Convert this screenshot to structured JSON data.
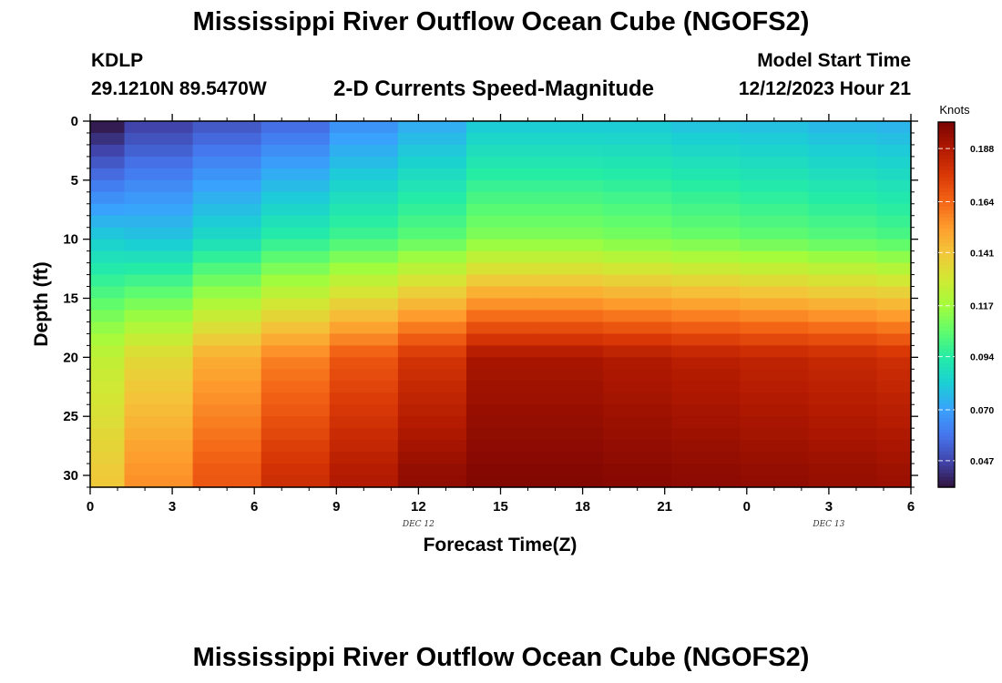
{
  "header": {
    "title": "Mississippi River Outflow Ocean Cube (NGOFS2)",
    "station": "KDLP",
    "coordinates": "29.1210N  89.5470W",
    "subtitle": "2-D Currents Speed-Magnitude",
    "model_start_label": "Model Start Time",
    "model_start_value": "12/12/2023 Hour 21"
  },
  "footer": {
    "title": "Mississippi River Outflow Ocean Cube (NGOFS2)"
  },
  "chart_data": {
    "type": "heatmap",
    "xlabel": "Forecast Time(Z)",
    "ylabel": "Depth (ft)",
    "x_tick_labels": [
      "0",
      "3",
      "6",
      "9",
      "12",
      "15",
      "18",
      "21",
      "0",
      "3",
      "6"
    ],
    "x_date_labels": [
      {
        "label": "DEC 12",
        "hours_from_start": 12
      },
      {
        "label": "DEC 13",
        "hours_from_start": 27
      }
    ],
    "xlim_hours": [
      0,
      30
    ],
    "y_tick_labels": [
      "0",
      "5",
      "10",
      "15",
      "20",
      "25",
      "30"
    ],
    "ylim": [
      0,
      31
    ],
    "y_inverted": true,
    "time_hours": [
      0,
      2.5,
      5,
      7.5,
      10,
      12.5,
      15,
      17.5,
      20,
      22.5,
      25,
      27.5,
      30
    ],
    "colorbar": {
      "label": "Knots",
      "min": 0.035,
      "max": 0.2,
      "ticks": [
        0.047,
        0.07,
        0.094,
        0.117,
        0.141,
        0.164,
        0.188
      ],
      "colors": [
        "#30123b",
        "#4145ab",
        "#4675ed",
        "#39a2fc",
        "#1bcfd4",
        "#24eca6",
        "#61fc6c",
        "#a4fc3b",
        "#d1e834",
        "#f3c63a",
        "#fe9b2d",
        "#f36315",
        "#d93806",
        "#b11901",
        "#7a0402"
      ]
    },
    "profiles": [
      {
        "time_hours": 0,
        "depth_ft": [
          0,
          10,
          20,
          30
        ],
        "speed_knots": [
          0.035,
          0.082,
          0.125,
          0.14
        ]
      },
      {
        "time_hours": 2.5,
        "depth_ft": [
          0,
          10,
          20,
          30
        ],
        "speed_knots": [
          0.045,
          0.08,
          0.135,
          0.155
        ]
      },
      {
        "time_hours": 5,
        "depth_ft": [
          0,
          10,
          20,
          30
        ],
        "speed_knots": [
          0.05,
          0.087,
          0.148,
          0.168
        ]
      },
      {
        "time_hours": 7.5,
        "depth_ft": [
          0,
          10,
          20,
          30
        ],
        "speed_knots": [
          0.055,
          0.095,
          0.158,
          0.18
        ]
      },
      {
        "time_hours": 10,
        "depth_ft": [
          0,
          10,
          20,
          30
        ],
        "speed_knots": [
          0.065,
          0.1,
          0.168,
          0.188
        ]
      },
      {
        "time_hours": 12.5,
        "depth_ft": [
          0,
          10,
          20,
          30
        ],
        "speed_knots": [
          0.072,
          0.105,
          0.178,
          0.195
        ]
      },
      {
        "time_hours": 15,
        "depth_ft": [
          0,
          10,
          20,
          30
        ],
        "speed_knots": [
          0.08,
          0.112,
          0.19,
          0.198
        ]
      },
      {
        "time_hours": 17.5,
        "depth_ft": [
          0,
          10,
          20,
          30
        ],
        "speed_knots": [
          0.08,
          0.112,
          0.19,
          0.198
        ]
      },
      {
        "time_hours": 20,
        "depth_ft": [
          0,
          10,
          20,
          30
        ],
        "speed_knots": [
          0.08,
          0.11,
          0.188,
          0.197
        ]
      },
      {
        "time_hours": 22.5,
        "depth_ft": [
          0,
          10,
          20,
          30
        ],
        "speed_knots": [
          0.078,
          0.108,
          0.186,
          0.196
        ]
      },
      {
        "time_hours": 25,
        "depth_ft": [
          0,
          10,
          20,
          30
        ],
        "speed_knots": [
          0.077,
          0.106,
          0.184,
          0.195
        ]
      },
      {
        "time_hours": 27.5,
        "depth_ft": [
          0,
          10,
          20,
          30
        ],
        "speed_knots": [
          0.075,
          0.104,
          0.182,
          0.194
        ]
      },
      {
        "time_hours": 30,
        "depth_ft": [
          0,
          10,
          20,
          30
        ],
        "speed_knots": [
          0.074,
          0.102,
          0.18,
          0.193
        ]
      }
    ]
  }
}
